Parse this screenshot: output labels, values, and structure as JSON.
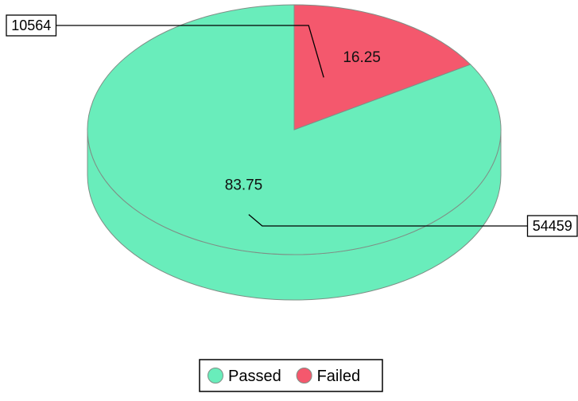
{
  "chart_data": {
    "type": "pie",
    "style": "3d",
    "series": [
      {
        "name": "Passed",
        "value": 54459,
        "percent": "83.75",
        "color": "#69EDBB"
      },
      {
        "name": "Failed",
        "value": 10564,
        "percent": "16.25",
        "color": "#F4586D"
      }
    ],
    "value_labels": [
      "54459",
      "10564"
    ],
    "legend": {
      "position": "bottom-center",
      "entries": [
        "Passed",
        "Failed"
      ]
    }
  }
}
